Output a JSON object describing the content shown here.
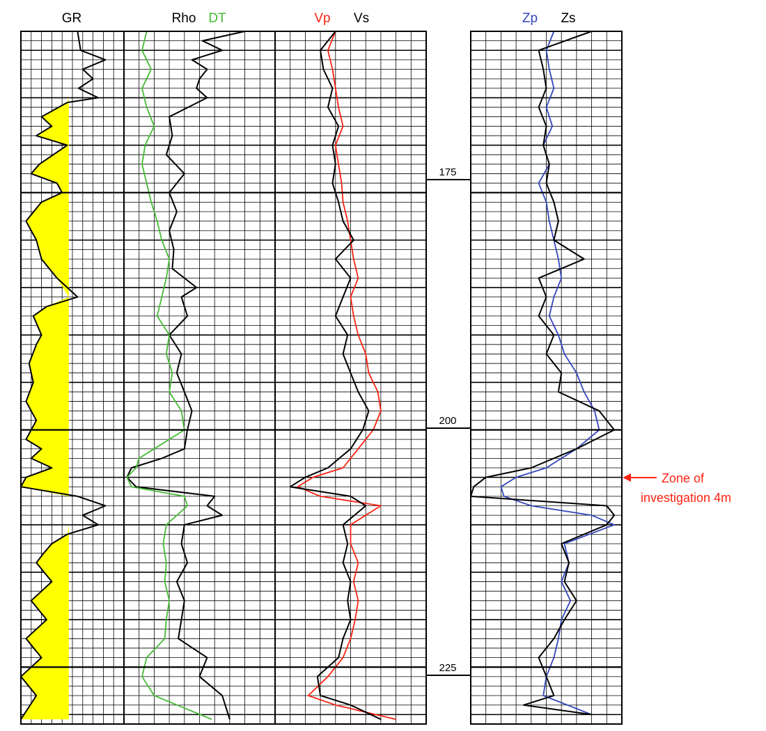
{
  "chart_data": {
    "type": "line",
    "subtype": "well-log",
    "colors": {
      "gr_fill": "#ffff00",
      "black": "#000000",
      "dt": "#44bb33",
      "vp": "#ff2211",
      "zp": "#3344bb",
      "annotation": "#ff2211"
    },
    "depth_axis": {
      "range": [
        158,
        231
      ],
      "reversed": true,
      "ticks": [
        175,
        200,
        225
      ],
      "tick_labels": [
        "175",
        "200",
        "225"
      ]
    },
    "annotation": {
      "text_line1": "Zone of",
      "text_line2": "investigation 4m",
      "depth": 205
    },
    "tracks": [
      {
        "title": "GR",
        "series": [
          {
            "name": "GR",
            "color": "#000000",
            "fill_color": "#ffff00",
            "depth": [
              158,
              160,
              161,
              162,
              163,
              164,
              165,
              165.5,
              167,
              168,
              169,
              170,
              172,
              173,
              174,
              175,
              176,
              178,
              180,
              182,
              184,
              186,
              187,
              188,
              190,
              191,
              193,
              195,
              197,
              199,
              201,
              202,
              203,
              204,
              205,
              206,
              207,
              208,
              209,
              210,
              211,
              212,
              213,
              214,
              216,
              218,
              220,
              222,
              224,
              226,
              228,
              230.5
            ],
            "value": [
              0.55,
              0.58,
              0.82,
              0.6,
              0.7,
              0.56,
              0.75,
              0.45,
              0.2,
              0.3,
              0.15,
              0.45,
              0.18,
              0.1,
              0.35,
              0.4,
              0.2,
              0.05,
              0.15,
              0.2,
              0.35,
              0.55,
              0.25,
              0.12,
              0.2,
              0.15,
              0.08,
              0.12,
              0.05,
              0.15,
              0.05,
              0.2,
              0.1,
              0.3,
              0.05,
              0.0,
              0.55,
              0.82,
              0.6,
              0.75,
              0.45,
              0.3,
              0.22,
              0.15,
              0.3,
              0.1,
              0.25,
              0.05,
              0.2,
              0.0,
              0.15,
              0.0
            ]
          }
        ]
      },
      {
        "title_a": "Rho",
        "title_b": "DT",
        "series": [
          {
            "name": "Rho",
            "color": "#000000",
            "depth": [
              158,
              159,
              160,
              161,
              162,
              163,
              164,
              165,
              167,
              169,
              171,
              173,
              175,
              177,
              179,
              181,
              183,
              185,
              186,
              188,
              190,
              192,
              194,
              196,
              198,
              200,
              202,
              203,
              204,
              205,
              206,
              207,
              208,
              209,
              210,
              212,
              214,
              216,
              218,
              220,
              222,
              224,
              226,
              228,
              230.5
            ],
            "value": [
              0.8,
              0.52,
              0.65,
              0.45,
              0.55,
              0.5,
              0.48,
              0.55,
              0.3,
              0.32,
              0.28,
              0.4,
              0.3,
              0.35,
              0.3,
              0.33,
              0.32,
              0.48,
              0.38,
              0.42,
              0.3,
              0.38,
              0.35,
              0.4,
              0.45,
              0.42,
              0.4,
              0.25,
              0.05,
              0.02,
              0.08,
              0.6,
              0.55,
              0.65,
              0.4,
              0.38,
              0.42,
              0.35,
              0.4,
              0.38,
              0.36,
              0.55,
              0.5,
              0.65,
              0.7
            ]
          },
          {
            "name": "DT",
            "color": "#44bb33",
            "depth": [
              158,
              160,
              162,
              164,
              166,
              168,
              170,
              172,
              174,
              176,
              178,
              180,
              182,
              184,
              186,
              188,
              190,
              192,
              194,
              196,
              198,
              200,
              202,
              203,
              204,
              205,
              206,
              207,
              208,
              210,
              212,
              214,
              216,
              218,
              220,
              222,
              224,
              226,
              228,
              230.5
            ],
            "value": [
              0.15,
              0.12,
              0.18,
              0.12,
              0.15,
              0.2,
              0.14,
              0.12,
              0.15,
              0.18,
              0.22,
              0.25,
              0.3,
              0.28,
              0.25,
              0.22,
              0.3,
              0.28,
              0.32,
              0.3,
              0.38,
              0.4,
              0.2,
              0.1,
              0.08,
              0.02,
              0.05,
              0.4,
              0.42,
              0.28,
              0.26,
              0.28,
              0.27,
              0.3,
              0.28,
              0.27,
              0.15,
              0.12,
              0.2,
              0.58
            ]
          }
        ]
      },
      {
        "title_a": "Vp",
        "title_b": "Vs",
        "series": [
          {
            "name": "Vp",
            "color": "#ff2211",
            "depth": [
              158,
              160,
              162,
              164,
              166,
              168,
              170,
              172,
              174,
              176,
              178,
              180,
              182,
              184,
              186,
              188,
              190,
              192,
              194,
              196,
              198,
              200,
              202,
              204,
              205,
              206,
              207,
              208,
              210,
              212,
              214,
              216,
              218,
              220,
              222,
              224,
              226,
              228,
              229,
              230.5
            ],
            "value": [
              0.4,
              0.35,
              0.38,
              0.4,
              0.42,
              0.45,
              0.4,
              0.42,
              0.44,
              0.45,
              0.48,
              0.5,
              0.52,
              0.55,
              0.5,
              0.52,
              0.55,
              0.6,
              0.62,
              0.68,
              0.7,
              0.65,
              0.55,
              0.45,
              0.25,
              0.15,
              0.3,
              0.7,
              0.5,
              0.5,
              0.55,
              0.52,
              0.55,
              0.53,
              0.5,
              0.45,
              0.35,
              0.22,
              0.4,
              0.8
            ]
          },
          {
            "name": "Vs",
            "color": "#000000",
            "depth": [
              158,
              160,
              162,
              164,
              166,
              168,
              170,
              172,
              174,
              176,
              178,
              180,
              182,
              184,
              186,
              188,
              190,
              192,
              194,
              196,
              198,
              200,
              202,
              204,
              205,
              206,
              207,
              208,
              210,
              212,
              214,
              216,
              218,
              220,
              222,
              224,
              226,
              228,
              229,
              230.5
            ],
            "value": [
              0.4,
              0.3,
              0.32,
              0.38,
              0.35,
              0.42,
              0.38,
              0.4,
              0.38,
              0.42,
              0.45,
              0.52,
              0.4,
              0.5,
              0.45,
              0.4,
              0.48,
              0.45,
              0.5,
              0.55,
              0.62,
              0.58,
              0.5,
              0.35,
              0.2,
              0.1,
              0.5,
              0.6,
              0.45,
              0.48,
              0.45,
              0.5,
              0.48,
              0.5,
              0.45,
              0.42,
              0.28,
              0.3,
              0.5,
              0.7
            ]
          }
        ]
      },
      {
        "title_a": "Zp",
        "title_b": "Zs",
        "series": [
          {
            "name": "Zp",
            "color": "#3344bb",
            "depth": [
              158,
              160,
              162,
              164,
              166,
              168,
              170,
              172,
              174,
              176,
              178,
              180,
              182,
              184,
              186,
              188,
              190,
              192,
              194,
              196,
              198,
              200,
              202,
              204,
              205,
              206,
              207,
              208,
              209,
              210,
              212,
              214,
              216,
              218,
              220,
              222,
              224,
              226,
              228,
              230
            ],
            "value": [
              0.55,
              0.5,
              0.52,
              0.55,
              0.5,
              0.54,
              0.48,
              0.52,
              0.45,
              0.5,
              0.52,
              0.55,
              0.58,
              0.6,
              0.55,
              0.52,
              0.58,
              0.62,
              0.7,
              0.75,
              0.82,
              0.85,
              0.7,
              0.5,
              0.3,
              0.2,
              0.22,
              0.4,
              0.8,
              0.95,
              0.62,
              0.65,
              0.6,
              0.66,
              0.6,
              0.58,
              0.55,
              0.5,
              0.48,
              0.8
            ]
          },
          {
            "name": "Zs",
            "color": "#000000",
            "depth": [
              158,
              160,
              162,
              164,
              166,
              168,
              170,
              172,
              174,
              176,
              178,
              180,
              182,
              184,
              186,
              188,
              190,
              192,
              194,
              196,
              198,
              200,
              202,
              204,
              205,
              206,
              207,
              208,
              209,
              210,
              212,
              214,
              216,
              218,
              220,
              222,
              224,
              226,
              228,
              229,
              230
            ],
            "value": [
              0.8,
              0.45,
              0.48,
              0.5,
              0.45,
              0.5,
              0.48,
              0.52,
              0.5,
              0.55,
              0.58,
              0.55,
              0.75,
              0.45,
              0.5,
              0.45,
              0.55,
              0.5,
              0.6,
              0.58,
              0.85,
              0.95,
              0.7,
              0.4,
              0.1,
              0.02,
              0.0,
              0.9,
              0.95,
              0.9,
              0.6,
              0.65,
              0.62,
              0.7,
              0.62,
              0.55,
              0.45,
              0.5,
              0.55,
              0.35,
              0.8
            ]
          }
        ]
      }
    ]
  }
}
